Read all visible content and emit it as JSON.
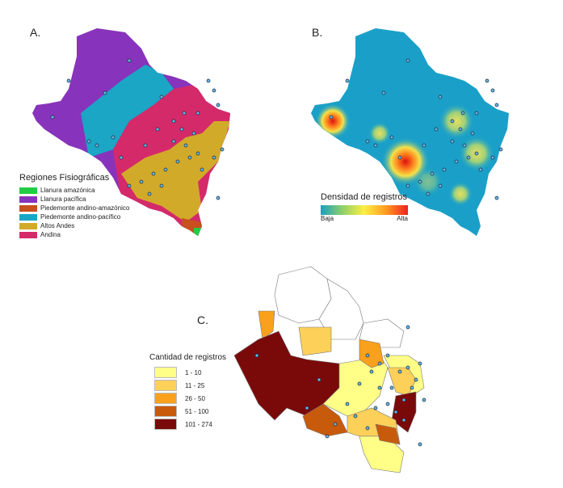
{
  "panels": {
    "a": {
      "label": "A.",
      "legend_title": "Regiones Fisiográficas",
      "legend_items": [
        {
          "label": "Llanura amazónica",
          "color": "#22cc44"
        },
        {
          "label": "Llanura pacífica",
          "color": "#8833bb"
        },
        {
          "label": "Piedemonte andino-amazónico",
          "color": "#c8501e"
        },
        {
          "label": "Piedemonte andino-pacífico",
          "color": "#1aa6c4"
        },
        {
          "label": "Altos Andes",
          "color": "#d2aa2a"
        },
        {
          "label": "Andina",
          "color": "#d42a6a"
        }
      ]
    },
    "b": {
      "label": "B.",
      "legend_title": "Densidad de registros",
      "low_label": "Baja",
      "high_label": "Alta"
    },
    "c": {
      "label": "C.",
      "legend_title": "Cantidad de registros",
      "legend_items": [
        {
          "label": "1 - 10",
          "color": "#ffff88"
        },
        {
          "label": "11 - 25",
          "color": "#fdd05a"
        },
        {
          "label": "26 - 50",
          "color": "#f9a11c"
        },
        {
          "label": "51 - 100",
          "color": "#c85a0c"
        },
        {
          "label": "101 - 274",
          "color": "#7a0a0a"
        }
      ]
    }
  }
}
